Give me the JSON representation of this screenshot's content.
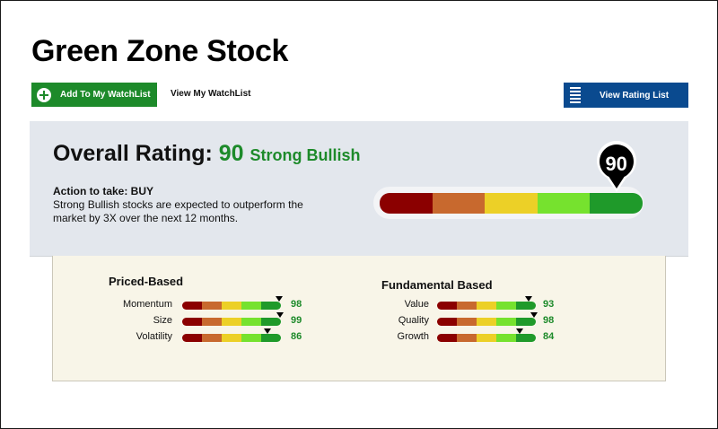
{
  "header": {
    "title": "Green Zone Stock",
    "add_watchlist_label": "Add To My WatchList",
    "view_watchlist_label": "View My WatchList",
    "view_rating_list_label": "View Rating List"
  },
  "overall": {
    "label": "Overall Rating:",
    "score": "90",
    "score_value": 90,
    "rating_word": "Strong Bullish",
    "action_label": "Action to take: BUY",
    "description": "Strong Bullish stocks are expected to outperform the market by 3X over the next 12 months.",
    "marker_text": "90"
  },
  "scale_colors": [
    "#8b0000",
    "#c8692e",
    "#ecd027",
    "#76e22e",
    "#1f9a2a"
  ],
  "groups": [
    {
      "title": "Priced-Based",
      "metrics": [
        {
          "label": "Momentum",
          "value": "98",
          "score": 98
        },
        {
          "label": "Size",
          "value": "99",
          "score": 99
        },
        {
          "label": "Volatility",
          "value": "86",
          "score": 86
        }
      ]
    },
    {
      "title": "Fundamental Based",
      "metrics": [
        {
          "label": "Value",
          "value": "93",
          "score": 93
        },
        {
          "label": "Quality",
          "value": "98",
          "score": 98
        },
        {
          "label": "Growth",
          "value": "84",
          "score": 84
        }
      ]
    }
  ],
  "colors": {
    "accent_green": "#1d8a2a",
    "button_blue": "#0a4a8f",
    "panel_gray": "#e3e7ed",
    "sub_panel_cream": "#f8f5e8"
  },
  "icons": {
    "add": "plus-circle-icon",
    "list": "list-icon",
    "marker": "map-pin-icon"
  }
}
